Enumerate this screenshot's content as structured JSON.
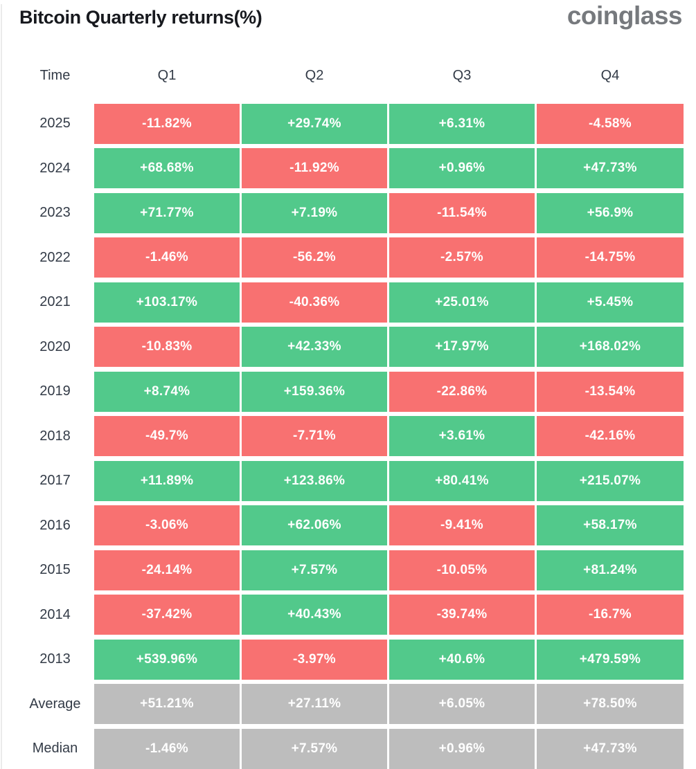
{
  "header": {
    "title": "Bitcoin Quarterly returns(%)",
    "logo": "coinglass"
  },
  "colors": {
    "positive": "#52c98b",
    "negative": "#f87171",
    "neutral": "#bdbdbd"
  },
  "table": {
    "columns": [
      "Time",
      "Q1",
      "Q2",
      "Q3",
      "Q4"
    ],
    "rows": [
      {
        "label": "2025",
        "cells": [
          {
            "text": "-11.82%",
            "type": "negative"
          },
          {
            "text": "+29.74%",
            "type": "positive"
          },
          {
            "text": "+6.31%",
            "type": "positive"
          },
          {
            "text": "-4.58%",
            "type": "negative"
          }
        ]
      },
      {
        "label": "2024",
        "cells": [
          {
            "text": "+68.68%",
            "type": "positive"
          },
          {
            "text": "-11.92%",
            "type": "negative"
          },
          {
            "text": "+0.96%",
            "type": "positive"
          },
          {
            "text": "+47.73%",
            "type": "positive"
          }
        ]
      },
      {
        "label": "2023",
        "cells": [
          {
            "text": "+71.77%",
            "type": "positive"
          },
          {
            "text": "+7.19%",
            "type": "positive"
          },
          {
            "text": "-11.54%",
            "type": "negative"
          },
          {
            "text": "+56.9%",
            "type": "positive"
          }
        ]
      },
      {
        "label": "2022",
        "cells": [
          {
            "text": "-1.46%",
            "type": "negative"
          },
          {
            "text": "-56.2%",
            "type": "negative"
          },
          {
            "text": "-2.57%",
            "type": "negative"
          },
          {
            "text": "-14.75%",
            "type": "negative"
          }
        ]
      },
      {
        "label": "2021",
        "cells": [
          {
            "text": "+103.17%",
            "type": "positive"
          },
          {
            "text": "-40.36%",
            "type": "negative"
          },
          {
            "text": "+25.01%",
            "type": "positive"
          },
          {
            "text": "+5.45%",
            "type": "positive"
          }
        ]
      },
      {
        "label": "2020",
        "cells": [
          {
            "text": "-10.83%",
            "type": "negative"
          },
          {
            "text": "+42.33%",
            "type": "positive"
          },
          {
            "text": "+17.97%",
            "type": "positive"
          },
          {
            "text": "+168.02%",
            "type": "positive"
          }
        ]
      },
      {
        "label": "2019",
        "cells": [
          {
            "text": "+8.74%",
            "type": "positive"
          },
          {
            "text": "+159.36%",
            "type": "positive"
          },
          {
            "text": "-22.86%",
            "type": "negative"
          },
          {
            "text": "-13.54%",
            "type": "negative"
          }
        ]
      },
      {
        "label": "2018",
        "cells": [
          {
            "text": "-49.7%",
            "type": "negative"
          },
          {
            "text": "-7.71%",
            "type": "negative"
          },
          {
            "text": "+3.61%",
            "type": "positive"
          },
          {
            "text": "-42.16%",
            "type": "negative"
          }
        ]
      },
      {
        "label": "2017",
        "cells": [
          {
            "text": "+11.89%",
            "type": "positive"
          },
          {
            "text": "+123.86%",
            "type": "positive"
          },
          {
            "text": "+80.41%",
            "type": "positive"
          },
          {
            "text": "+215.07%",
            "type": "positive"
          }
        ]
      },
      {
        "label": "2016",
        "cells": [
          {
            "text": "-3.06%",
            "type": "negative"
          },
          {
            "text": "+62.06%",
            "type": "positive"
          },
          {
            "text": "-9.41%",
            "type": "negative"
          },
          {
            "text": "+58.17%",
            "type": "positive"
          }
        ]
      },
      {
        "label": "2015",
        "cells": [
          {
            "text": "-24.14%",
            "type": "negative"
          },
          {
            "text": "+7.57%",
            "type": "positive"
          },
          {
            "text": "-10.05%",
            "type": "negative"
          },
          {
            "text": "+81.24%",
            "type": "positive"
          }
        ]
      },
      {
        "label": "2014",
        "cells": [
          {
            "text": "-37.42%",
            "type": "negative"
          },
          {
            "text": "+40.43%",
            "type": "positive"
          },
          {
            "text": "-39.74%",
            "type": "negative"
          },
          {
            "text": "-16.7%",
            "type": "negative"
          }
        ]
      },
      {
        "label": "2013",
        "cells": [
          {
            "text": "+539.96%",
            "type": "positive"
          },
          {
            "text": "-3.97%",
            "type": "negative"
          },
          {
            "text": "+40.6%",
            "type": "positive"
          },
          {
            "text": "+479.59%",
            "type": "positive"
          }
        ]
      },
      {
        "label": "Average",
        "cells": [
          {
            "text": "+51.21%",
            "type": "neutral"
          },
          {
            "text": "+27.11%",
            "type": "neutral"
          },
          {
            "text": "+6.05%",
            "type": "neutral"
          },
          {
            "text": "+78.50%",
            "type": "neutral"
          }
        ]
      },
      {
        "label": "Median",
        "cells": [
          {
            "text": "-1.46%",
            "type": "neutral"
          },
          {
            "text": "+7.57%",
            "type": "neutral"
          },
          {
            "text": "+0.96%",
            "type": "neutral"
          },
          {
            "text": "+47.73%",
            "type": "neutral"
          }
        ]
      }
    ]
  },
  "chart_data": {
    "type": "heatmap",
    "title": "Bitcoin Quarterly returns(%)",
    "columns": [
      "Q1",
      "Q2",
      "Q3",
      "Q4"
    ],
    "rows": [
      "2025",
      "2024",
      "2023",
      "2022",
      "2021",
      "2020",
      "2019",
      "2018",
      "2017",
      "2016",
      "2015",
      "2014",
      "2013",
      "Average",
      "Median"
    ],
    "values": [
      [
        -11.82,
        29.74,
        6.31,
        -4.58
      ],
      [
        68.68,
        -11.92,
        0.96,
        47.73
      ],
      [
        71.77,
        7.19,
        -11.54,
        56.9
      ],
      [
        -1.46,
        -56.2,
        -2.57,
        -14.75
      ],
      [
        103.17,
        -40.36,
        25.01,
        5.45
      ],
      [
        -10.83,
        42.33,
        17.97,
        168.02
      ],
      [
        8.74,
        159.36,
        -22.86,
        -13.54
      ],
      [
        -49.7,
        -7.71,
        3.61,
        -42.16
      ],
      [
        11.89,
        123.86,
        80.41,
        215.07
      ],
      [
        -3.06,
        62.06,
        -9.41,
        58.17
      ],
      [
        -24.14,
        7.57,
        -10.05,
        81.24
      ],
      [
        -37.42,
        40.43,
        -39.74,
        -16.7
      ],
      [
        539.96,
        -3.97,
        40.6,
        479.59
      ],
      [
        51.21,
        27.11,
        6.05,
        78.5
      ],
      [
        -1.46,
        7.57,
        0.96,
        47.73
      ]
    ],
    "legend": "green = positive quarter, red = negative quarter, gray = summary rows (Average/Median)",
    "layout": {
      "grid": false,
      "cell_text_format": "signed percent"
    }
  }
}
